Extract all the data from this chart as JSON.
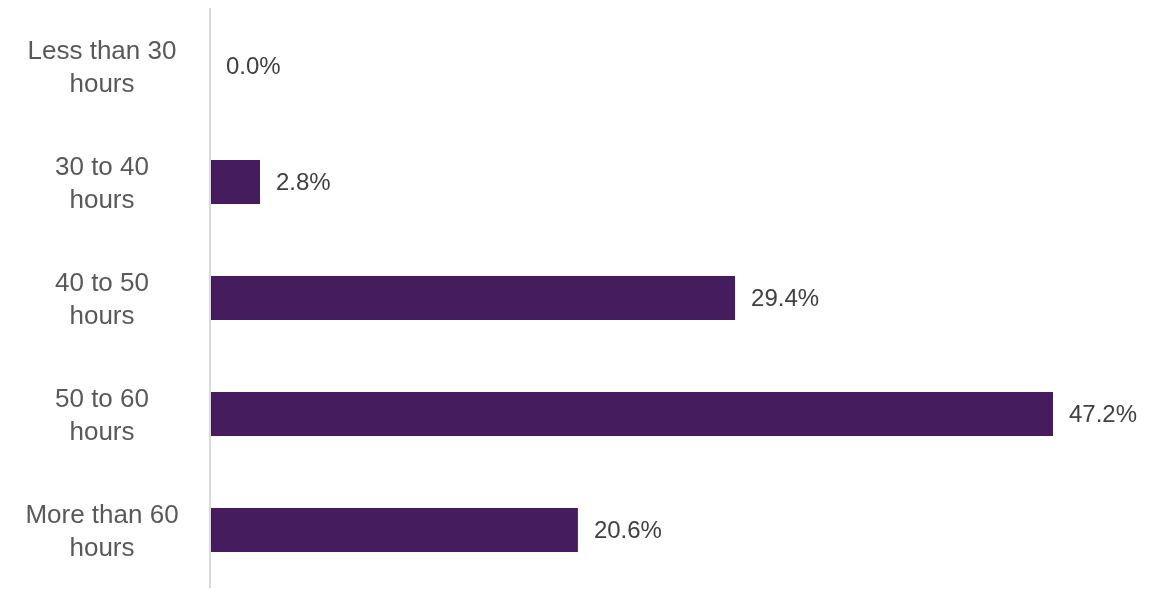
{
  "chart_data": {
    "type": "bar",
    "orientation": "horizontal",
    "categories": [
      "Less than 30 hours",
      "30 to 40 hours",
      "40 to 50 hours",
      "50 to 60 hours",
      "More than 60 hours"
    ],
    "values": [
      0.0,
      2.8,
      29.4,
      47.2,
      20.6
    ],
    "value_labels": [
      "0.0%",
      "2.8%",
      "29.4%",
      "47.2%",
      "20.6%"
    ],
    "color": "#451d5e",
    "grid": false,
    "legend": false
  }
}
